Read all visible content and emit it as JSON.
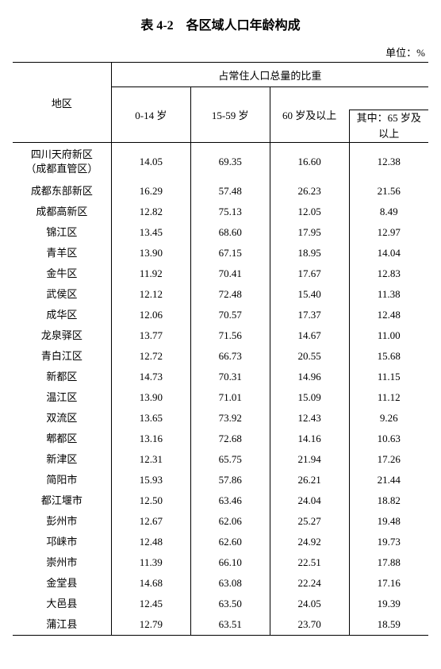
{
  "title": "表 4-2　各区域人口年龄构成",
  "unit": "单位：%",
  "header": {
    "region": "地区",
    "group_header": "占常住人口总量的比重",
    "c0_14": "0-14 岁",
    "c15_59": "15-59 岁",
    "c60plus": "60 岁及以上",
    "c65plus_a": "其中：65 岁及",
    "c65plus_b": "以上"
  },
  "rows": [
    {
      "region_a": "四川天府新区",
      "region_b": "（成都直管区）",
      "v": [
        "14.05",
        "69.35",
        "16.60",
        "12.38"
      ]
    },
    {
      "region": "成都东部新区",
      "v": [
        "16.29",
        "57.48",
        "26.23",
        "21.56"
      ]
    },
    {
      "region": "成都高新区",
      "v": [
        "12.82",
        "75.13",
        "12.05",
        "8.49"
      ]
    },
    {
      "region": "锦江区",
      "v": [
        "13.45",
        "68.60",
        "17.95",
        "12.97"
      ]
    },
    {
      "region": "青羊区",
      "v": [
        "13.90",
        "67.15",
        "18.95",
        "14.04"
      ]
    },
    {
      "region": "金牛区",
      "v": [
        "11.92",
        "70.41",
        "17.67",
        "12.83"
      ]
    },
    {
      "region": "武侯区",
      "v": [
        "12.12",
        "72.48",
        "15.40",
        "11.38"
      ]
    },
    {
      "region": "成华区",
      "v": [
        "12.06",
        "70.57",
        "17.37",
        "12.48"
      ]
    },
    {
      "region": "龙泉驿区",
      "v": [
        "13.77",
        "71.56",
        "14.67",
        "11.00"
      ]
    },
    {
      "region": "青白江区",
      "v": [
        "12.72",
        "66.73",
        "20.55",
        "15.68"
      ]
    },
    {
      "region": "新都区",
      "v": [
        "14.73",
        "70.31",
        "14.96",
        "11.15"
      ]
    },
    {
      "region": "温江区",
      "v": [
        "13.90",
        "71.01",
        "15.09",
        "11.12"
      ]
    },
    {
      "region": "双流区",
      "v": [
        "13.65",
        "73.92",
        "12.43",
        "9.26"
      ]
    },
    {
      "region": "郫都区",
      "v": [
        "13.16",
        "72.68",
        "14.16",
        "10.63"
      ]
    },
    {
      "region": "新津区",
      "v": [
        "12.31",
        "65.75",
        "21.94",
        "17.26"
      ]
    },
    {
      "region": "简阳市",
      "v": [
        "15.93",
        "57.86",
        "26.21",
        "21.44"
      ]
    },
    {
      "region": "都江堰市",
      "v": [
        "12.50",
        "63.46",
        "24.04",
        "18.82"
      ]
    },
    {
      "region": "彭州市",
      "v": [
        "12.67",
        "62.06",
        "25.27",
        "19.48"
      ]
    },
    {
      "region": "邛崃市",
      "v": [
        "12.48",
        "62.60",
        "24.92",
        "19.73"
      ]
    },
    {
      "region": "崇州市",
      "v": [
        "11.39",
        "66.10",
        "22.51",
        "17.88"
      ]
    },
    {
      "region": "金堂县",
      "v": [
        "14.68",
        "63.08",
        "22.24",
        "17.16"
      ]
    },
    {
      "region": "大邑县",
      "v": [
        "12.45",
        "63.50",
        "24.05",
        "19.39"
      ]
    },
    {
      "region": "蒲江县",
      "v": [
        "12.79",
        "63.51",
        "23.70",
        "18.59"
      ]
    }
  ]
}
